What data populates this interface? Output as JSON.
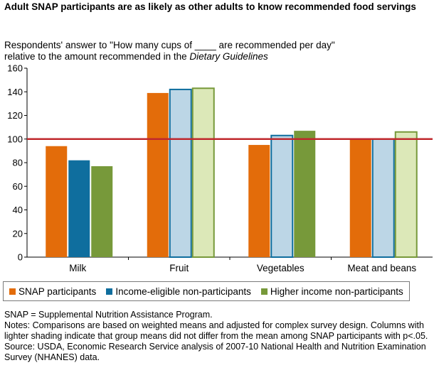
{
  "title": "Adult SNAP participants are as likely as other adults to know recommended food servings",
  "subtitle_line1": "Respondents' answer to \"How many cups of ____ are recommended per day\"",
  "subtitle_line2_prefix": "relative to the amount recommended in the ",
  "subtitle_line2_italic": "Dietary Guidelines",
  "chart_data": {
    "type": "bar",
    "categories": [
      "Milk",
      "Fruit",
      "Vegetables",
      "Meat and beans"
    ],
    "series": [
      {
        "name": "SNAP participants",
        "values": [
          94,
          139,
          95,
          100
        ],
        "color": "#E36C0A"
      },
      {
        "name": "Income-eligible non-participants",
        "values": [
          82,
          142,
          103,
          100
        ],
        "color": "#0F6E9E"
      },
      {
        "name": "Higher income non-participants",
        "values": [
          77,
          143,
          107,
          106
        ],
        "color": "#77993A"
      }
    ],
    "lighter_shaded": {
      "Income-eligible non-participants": [
        false,
        true,
        true,
        true
      ],
      "Higher income non-participants": [
        false,
        true,
        false,
        true
      ]
    },
    "light_colors": {
      "Income-eligible non-participants": "#BCD6E6",
      "Higher income non-participants": "#DCE8B8"
    },
    "reference_line": 100,
    "reference_color": "#C0282D",
    "ylim": [
      0,
      160
    ],
    "yticks": [
      0,
      20,
      40,
      60,
      80,
      100,
      120,
      140,
      160
    ],
    "grid": false,
    "legend_position": "bottom"
  },
  "notes": [
    "SNAP = Supplemental Nutrition Assistance Program.",
    "Notes: Comparisons are based on weighted means and adjusted for complex survey design. Columns with lighter shading indicate that group means did not differ from the mean among SNAP participants with p<.05.",
    "Source: USDA, Economic Research Service analysis of 2007-10 National Health and Nutrition Examination Survey (NHANES) data."
  ]
}
